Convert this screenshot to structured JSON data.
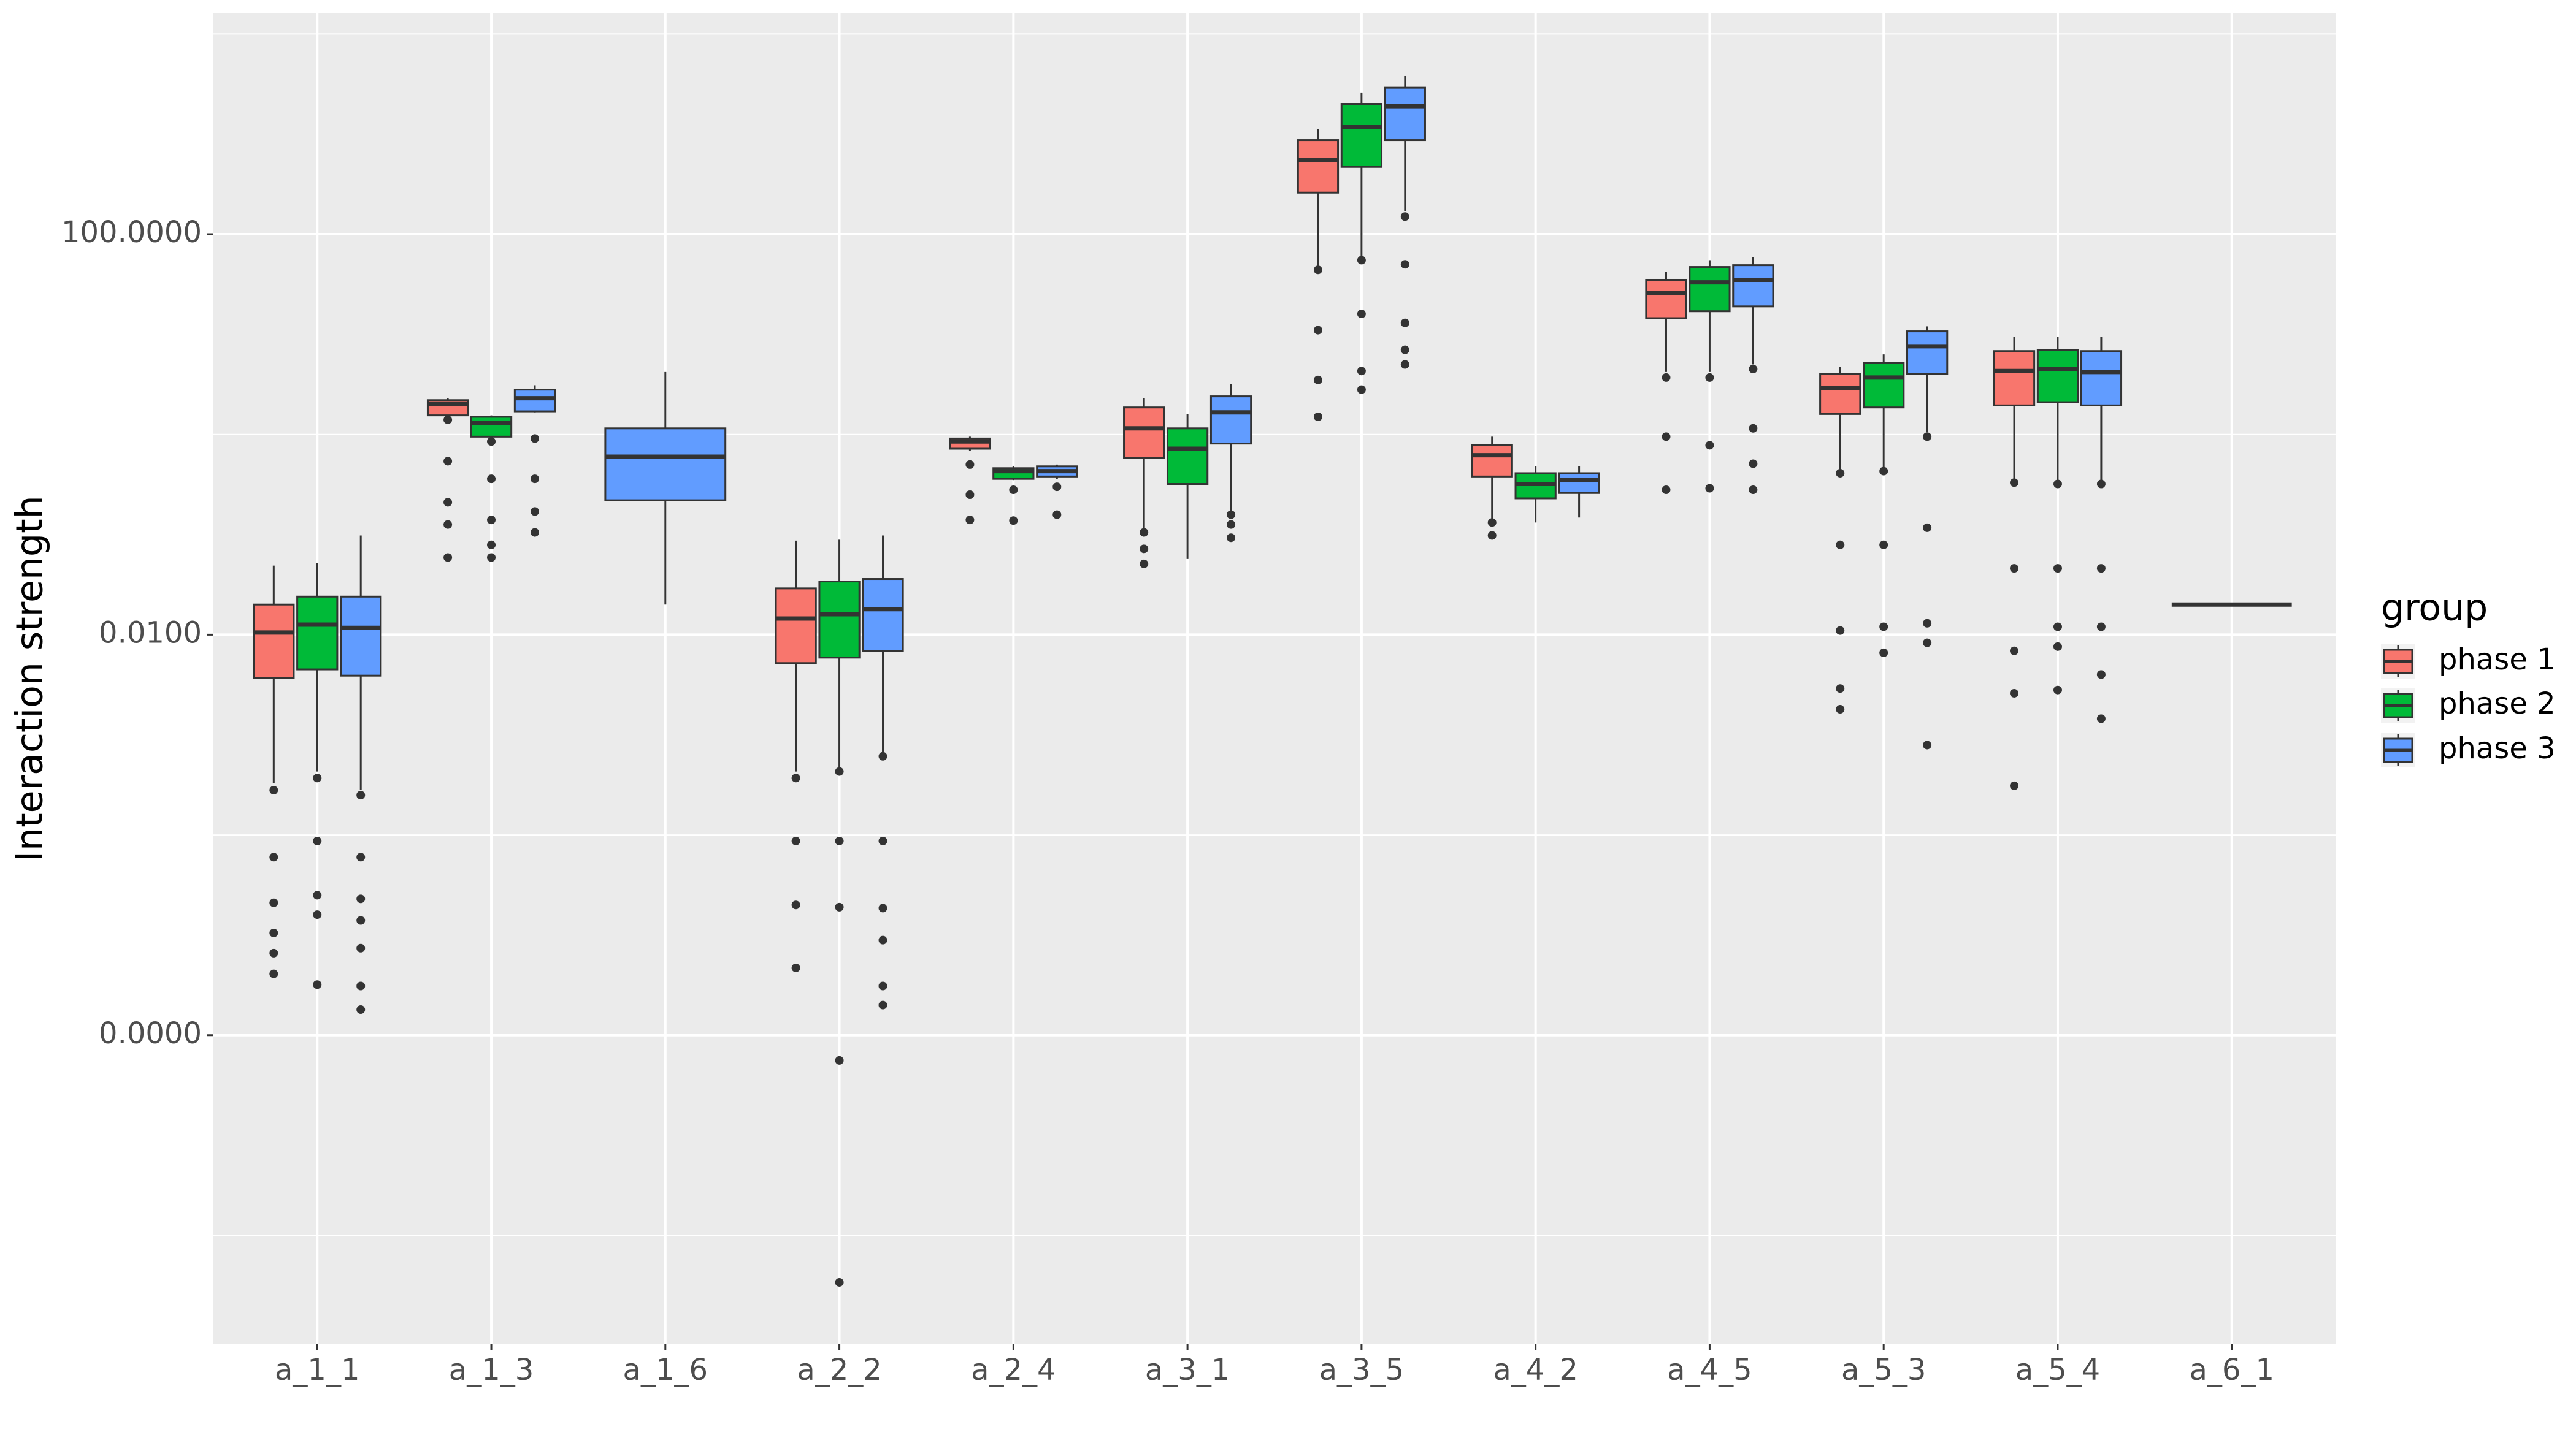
{
  "chart_data": {
    "type": "box",
    "y_label": "Interaction strength",
    "log_y": true,
    "grid": true,
    "legend_title": "group",
    "legend_position": "right",
    "categories": [
      "a_1_1",
      "a_1_3",
      "a_1_6",
      "a_2_2",
      "a_2_4",
      "a_3_1",
      "a_3_5",
      "a_4_2",
      "a_4_5",
      "a_5_3",
      "a_5_4",
      "a_6_1"
    ],
    "ylim": [
      8.3e-10,
      16000
    ],
    "yticks": [
      {
        "value": 100,
        "label": "100.0000"
      },
      {
        "value": 0.01,
        "label": "0.0100"
      },
      {
        "value": 1e-06,
        "label": "0.0000"
      }
    ],
    "yminor": [
      10000,
      1,
      0.0001,
      1e-08
    ],
    "series": [
      {
        "name": "phase 1",
        "color": "#F8766D",
        "values": [
          {
            "whisker_low": 0.00033,
            "q1": 0.0037,
            "median": 0.0105,
            "q3": 0.02,
            "whisker_high": 0.049,
            "outliers": [
              0.00028,
              6e-05,
              2.1e-05,
              1.05e-05,
              6.6e-06,
              4.1e-06
            ]
          },
          {
            "whisker_low": 1.5,
            "q1": 1.55,
            "median": 2.0,
            "q3": 2.2,
            "whisker_high": 2.3,
            "outliers": [
              1.4,
              0.54,
              0.21,
              0.126,
              0.059
            ]
          },
          null,
          {
            "whisker_low": 0.00043,
            "q1": 0.0052,
            "median": 0.0145,
            "q3": 0.029,
            "whisker_high": 0.087,
            "outliers": [
              0.00037,
              8.7e-05,
              2e-05,
              4.7e-06
            ]
          },
          {
            "whisker_low": 0.69,
            "q1": 0.72,
            "median": 0.85,
            "q3": 0.91,
            "whisker_high": 0.95,
            "outliers": [
              0.5,
              0.25,
              0.14
            ]
          },
          {
            "whisker_low": 0.112,
            "q1": 0.58,
            "median": 1.15,
            "q3": 1.86,
            "whisker_high": 2.3,
            "outliers": [
              0.105,
              0.072,
              0.051
            ]
          },
          {
            "whisker_low": 47,
            "q1": 260,
            "median": 550,
            "q3": 870,
            "whisker_high": 1120,
            "outliers": [
              44,
              11,
              3.5,
              1.5
            ]
          },
          {
            "whisker_low": 0.14,
            "q1": 0.38,
            "median": 0.62,
            "q3": 0.78,
            "whisker_high": 0.95,
            "outliers": [
              0.132,
              0.098
            ]
          },
          {
            "whisker_low": 4.2,
            "q1": 14.5,
            "median": 26,
            "q3": 35,
            "whisker_high": 42,
            "outliers": [
              3.7,
              0.95,
              0.28
            ]
          },
          {
            "whisker_low": 0.45,
            "q1": 1.6,
            "median": 2.9,
            "q3": 4.0,
            "whisker_high": 4.7,
            "outliers": [
              0.41,
              0.079,
              0.011,
              0.0029,
              0.0018
            ]
          },
          {
            "whisker_low": 0.35,
            "q1": 1.95,
            "median": 4.3,
            "q3": 6.8,
            "whisker_high": 9.5,
            "outliers": [
              0.33,
              0.046,
              0.0069,
              0.0026,
              0.00031
            ]
          },
          null
        ]
      },
      {
        "name": "phase 2",
        "color": "#00BA38",
        "values": [
          {
            "whisker_low": 0.00043,
            "q1": 0.0045,
            "median": 0.0126,
            "q3": 0.024,
            "whisker_high": 0.052,
            "outliers": [
              0.00037,
              8.7e-05,
              2.5e-05,
              1.6e-05,
              3.2e-06
            ]
          },
          {
            "whisker_low": 0.91,
            "q1": 0.95,
            "median": 1.3,
            "q3": 1.5,
            "whisker_high": 1.55,
            "outliers": [
              0.85,
              0.36,
              0.14,
              0.079,
              0.059
            ]
          },
          null,
          {
            "whisker_low": 0.00047,
            "q1": 0.0059,
            "median": 0.016,
            "q3": 0.034,
            "whisker_high": 0.089,
            "outliers": [
              0.00043,
              8.7e-05,
              1.9e-05,
              5.6e-07,
              3.4e-09
            ]
          },
          {
            "whisker_low": 0.35,
            "q1": 0.36,
            "median": 0.43,
            "q3": 0.46,
            "whisker_high": 0.48,
            "outliers": [
              0.28,
              0.138
            ]
          },
          {
            "whisker_low": 0.057,
            "q1": 0.32,
            "median": 0.72,
            "q3": 1.15,
            "whisker_high": 1.6,
            "outliers": []
          },
          {
            "whisker_low": 61,
            "q1": 470,
            "median": 1170,
            "q3": 2000,
            "whisker_high": 2600,
            "outliers": [
              55,
              16,
              4.3,
              2.8
            ]
          },
          {
            "whisker_low": 0.132,
            "q1": 0.23,
            "median": 0.32,
            "q3": 0.41,
            "whisker_high": 0.48,
            "outliers": []
          },
          {
            "whisker_low": 4.2,
            "q1": 17,
            "median": 33,
            "q3": 47,
            "whisker_high": 55,
            "outliers": [
              3.7,
              0.78,
              0.29
            ]
          },
          {
            "whisker_low": 0.46,
            "q1": 1.86,
            "median": 3.7,
            "q3": 5.2,
            "whisker_high": 6.3,
            "outliers": [
              0.43,
              0.079,
              0.012,
              0.0066
            ]
          },
          {
            "whisker_low": 0.34,
            "q1": 2.1,
            "median": 4.5,
            "q3": 7.0,
            "whisker_high": 9.5,
            "outliers": [
              0.32,
              0.046,
              0.012,
              0.0076,
              0.0028
            ]
          },
          null
        ]
      },
      {
        "name": "phase 3",
        "color": "#619CFF",
        "values": [
          {
            "whisker_low": 0.00028,
            "q1": 0.0039,
            "median": 0.0117,
            "q3": 0.024,
            "whisker_high": 0.098,
            "outliers": [
              0.00025,
              6e-05,
              2.3e-05,
              1.4e-05,
              7.4e-06,
              3.1e-06,
              1.8e-06
            ]
          },
          {
            "whisker_low": 1.66,
            "q1": 1.7,
            "median": 2.3,
            "q3": 2.8,
            "whisker_high": 3.1,
            "outliers": [
              0.91,
              0.36,
              0.17,
              0.105
            ]
          },
          {
            "whisker_low": 0.02,
            "q1": 0.22,
            "median": 0.6,
            "q3": 1.15,
            "whisker_high": 4.2,
            "outliers": []
          },
          {
            "whisker_low": 0.00065,
            "q1": 0.0069,
            "median": 0.018,
            "q3": 0.036,
            "whisker_high": 0.098,
            "outliers": [
              0.00061,
              8.7e-05,
              1.86e-05,
              8.9e-06,
              3.1e-06,
              2e-06
            ]
          },
          {
            "whisker_low": 0.36,
            "q1": 0.38,
            "median": 0.43,
            "q3": 0.48,
            "whisker_high": 0.5,
            "outliers": [
              0.3,
              0.158
            ]
          },
          {
            "whisker_low": 0.17,
            "q1": 0.81,
            "median": 1.66,
            "q3": 2.4,
            "whisker_high": 3.2,
            "outliers": [
              0.158,
              0.126,
              0.093
            ]
          },
          {
            "whisker_low": 170,
            "q1": 870,
            "median": 1900,
            "q3": 2900,
            "whisker_high": 3800,
            "outliers": [
              150,
              50,
              13,
              7.0,
              5.0
            ]
          },
          {
            "whisker_low": 0.148,
            "q1": 0.26,
            "median": 0.35,
            "q3": 0.41,
            "whisker_high": 0.48,
            "outliers": []
          },
          {
            "whisker_low": 5.0,
            "q1": 19,
            "median": 35,
            "q3": 49,
            "whisker_high": 59,
            "outliers": [
              4.5,
              1.15,
              0.51,
              0.28
            ]
          },
          {
            "whisker_low": 1.05,
            "q1": 4.0,
            "median": 7.6,
            "q3": 10.7,
            "whisker_high": 12,
            "outliers": [
              0.95,
              0.117,
              0.013,
              0.0083,
              0.00079
            ]
          },
          {
            "whisker_low": 0.34,
            "q1": 1.95,
            "median": 4.2,
            "q3": 6.8,
            "whisker_high": 9.5,
            "outliers": [
              0.32,
              0.046,
              0.012,
              0.004,
              0.00145
            ]
          },
          {
            "whisker_low": 0.02,
            "q1": 0.02,
            "median": 0.02,
            "q3": 0.02,
            "whisker_high": 0.02,
            "outliers": []
          }
        ]
      }
    ]
  }
}
